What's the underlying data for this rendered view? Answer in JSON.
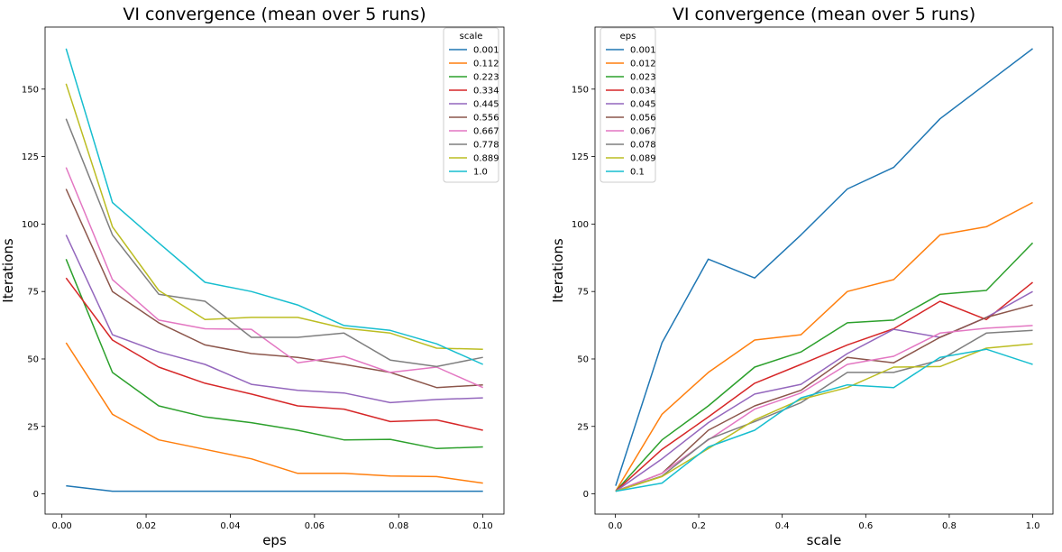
{
  "chart_data": [
    {
      "type": "line",
      "title": "VI convergence (mean over 5 runs)",
      "xlabel": "eps",
      "ylabel": "Iterations",
      "xlim": [
        -0.004,
        0.105
      ],
      "ylim": [
        -7.5,
        173
      ],
      "xticks": [
        0.0,
        0.02,
        0.04,
        0.06,
        0.08,
        0.1
      ],
      "xtick_labels": [
        "0.00",
        "0.02",
        "0.04",
        "0.06",
        "0.08",
        "0.10"
      ],
      "yticks": [
        0,
        25,
        50,
        75,
        100,
        125,
        150
      ],
      "ytick_labels": [
        "0",
        "25",
        "50",
        "75",
        "100",
        "125",
        "150"
      ],
      "legend_title": "scale",
      "legend_position": "top-right",
      "grid": false,
      "x": [
        0.001,
        0.012,
        0.023,
        0.034,
        0.045,
        0.056,
        0.067,
        0.078,
        0.089,
        0.1
      ],
      "series": [
        {
          "name": "0.001",
          "color": "#1f77b4",
          "values": [
            3,
            1,
            1,
            1,
            1,
            1,
            1,
            1,
            1,
            1
          ]
        },
        {
          "name": "0.112",
          "color": "#ff7f0e",
          "values": [
            56,
            29.5,
            20,
            16.5,
            13,
            7.6,
            7.6,
            6.6,
            6.4,
            4
          ]
        },
        {
          "name": "0.223",
          "color": "#2ca02c",
          "values": [
            87,
            45,
            32.6,
            28.5,
            26.4,
            23.6,
            20,
            20.2,
            16.8,
            17.4
          ]
        },
        {
          "name": "0.334",
          "color": "#d62728",
          "values": [
            80,
            57,
            47,
            41,
            37,
            32.6,
            31.4,
            26.8,
            27.4,
            23.6
          ]
        },
        {
          "name": "0.445",
          "color": "#9467bd",
          "values": [
            96,
            59,
            52.6,
            48,
            40.6,
            38.4,
            37.4,
            33.8,
            35,
            35.6
          ]
        },
        {
          "name": "0.556",
          "color": "#8c564b",
          "values": [
            113,
            75,
            63.4,
            55.2,
            52,
            50.6,
            48,
            45,
            39.4,
            40.4
          ]
        },
        {
          "name": "0.667",
          "color": "#e377c2",
          "values": [
            121,
            79.4,
            64.4,
            61.2,
            61,
            48.6,
            51,
            45,
            47,
            39.4
          ]
        },
        {
          "name": "0.778",
          "color": "#7f7f7f",
          "values": [
            139,
            96,
            74,
            71.4,
            58,
            58,
            59.6,
            49.6,
            47.2,
            50.6
          ]
        },
        {
          "name": "0.889",
          "color": "#bcbd22",
          "values": [
            152,
            99,
            75.4,
            64.6,
            65.4,
            65.4,
            61.4,
            59.6,
            54,
            53.6
          ]
        },
        {
          "name": "1.0",
          "color": "#17becf",
          "values": [
            165,
            108,
            93,
            78.4,
            75,
            70,
            62.4,
            60.6,
            55.6,
            48
          ]
        }
      ]
    },
    {
      "type": "line",
      "title": "VI convergence (mean over 5 runs)",
      "xlabel": "scale",
      "ylabel": "Iterations",
      "xlim": [
        -0.0485,
        1.0485
      ],
      "ylim": [
        -7.5,
        173
      ],
      "xticks": [
        0.0,
        0.2,
        0.4,
        0.6,
        0.8,
        1.0
      ],
      "xtick_labels": [
        "0.0",
        "0.2",
        "0.4",
        "0.6",
        "0.8",
        "1.0"
      ],
      "yticks": [
        0,
        25,
        50,
        75,
        100,
        125,
        150
      ],
      "ytick_labels": [
        "0",
        "25",
        "50",
        "75",
        "100",
        "125",
        "150"
      ],
      "legend_title": "eps",
      "legend_position": "top-left",
      "grid": false,
      "x": [
        0.001,
        0.112,
        0.223,
        0.334,
        0.445,
        0.556,
        0.667,
        0.778,
        0.889,
        1.0
      ],
      "series": [
        {
          "name": "0.001",
          "color": "#1f77b4",
          "values": [
            3,
            56,
            87,
            80,
            96,
            113,
            121,
            139,
            152,
            165
          ]
        },
        {
          "name": "0.012",
          "color": "#ff7f0e",
          "values": [
            1,
            29.5,
            45,
            57,
            59,
            75,
            79.4,
            96,
            99,
            108
          ]
        },
        {
          "name": "0.023",
          "color": "#2ca02c",
          "values": [
            1,
            20,
            32.6,
            47,
            52.6,
            63.4,
            64.4,
            74,
            75.4,
            93
          ]
        },
        {
          "name": "0.034",
          "color": "#d62728",
          "values": [
            1,
            16.5,
            28.5,
            41,
            48,
            55.2,
            61.2,
            71.4,
            64.6,
            78.4
          ]
        },
        {
          "name": "0.045",
          "color": "#9467bd",
          "values": [
            1,
            13,
            26.4,
            37,
            40.6,
            52,
            61,
            58,
            65.4,
            75
          ]
        },
        {
          "name": "0.056",
          "color": "#8c564b",
          "values": [
            1,
            7.6,
            23.6,
            32.6,
            38.4,
            50.6,
            48.6,
            58,
            65.4,
            70
          ]
        },
        {
          "name": "0.067",
          "color": "#e377c2",
          "values": [
            1,
            7.6,
            20,
            31.4,
            37.4,
            48,
            51,
            59.6,
            61.4,
            62.4
          ]
        },
        {
          "name": "0.078",
          "color": "#7f7f7f",
          "values": [
            1,
            6.6,
            20.2,
            26.8,
            33.8,
            45,
            45,
            49.6,
            59.6,
            60.6
          ]
        },
        {
          "name": "0.089",
          "color": "#bcbd22",
          "values": [
            1,
            6.4,
            16.8,
            27.4,
            35,
            39.4,
            47,
            47.2,
            54,
            55.6
          ]
        },
        {
          "name": "0.1",
          "color": "#17becf",
          "values": [
            1,
            4,
            17.4,
            23.6,
            35.6,
            40.4,
            39.4,
            50.6,
            53.6,
            48
          ]
        }
      ]
    }
  ]
}
